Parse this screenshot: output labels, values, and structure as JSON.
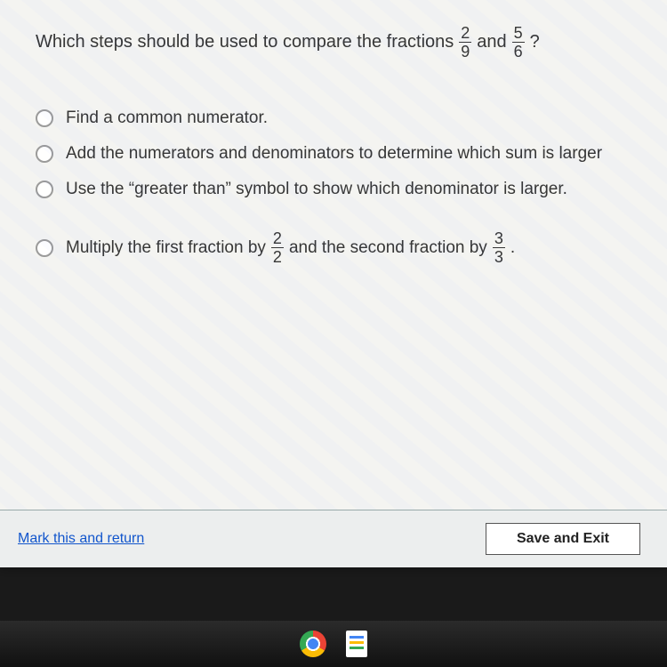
{
  "question": {
    "prefix": "Which steps should be used to compare the fractions",
    "frac1": {
      "num": "2",
      "den": "9"
    },
    "mid": " and ",
    "frac2": {
      "num": "5",
      "den": "6"
    },
    "suffix": "?"
  },
  "options": [
    {
      "type": "plain",
      "text": "Find a common numerator."
    },
    {
      "type": "plain",
      "text": "Add the numerators and denominators to determine which sum is larger"
    },
    {
      "type": "plain",
      "text": "Use the “greater than” symbol to show which denominator is larger."
    },
    {
      "type": "frac",
      "part1": "Multiply the first fraction by",
      "fracA": {
        "num": "2",
        "den": "2"
      },
      "mid": "and the second fraction by",
      "fracB": {
        "num": "3",
        "den": "3"
      },
      "end": "."
    }
  ],
  "bottom": {
    "mark_label": "Mark this and return",
    "save_label": "Save and Exit"
  },
  "colors": {
    "panel_bg": "#f4f4f2",
    "text": "#333333",
    "link": "#1155cc",
    "button_border": "#555555",
    "divider": "#99aaaa"
  }
}
